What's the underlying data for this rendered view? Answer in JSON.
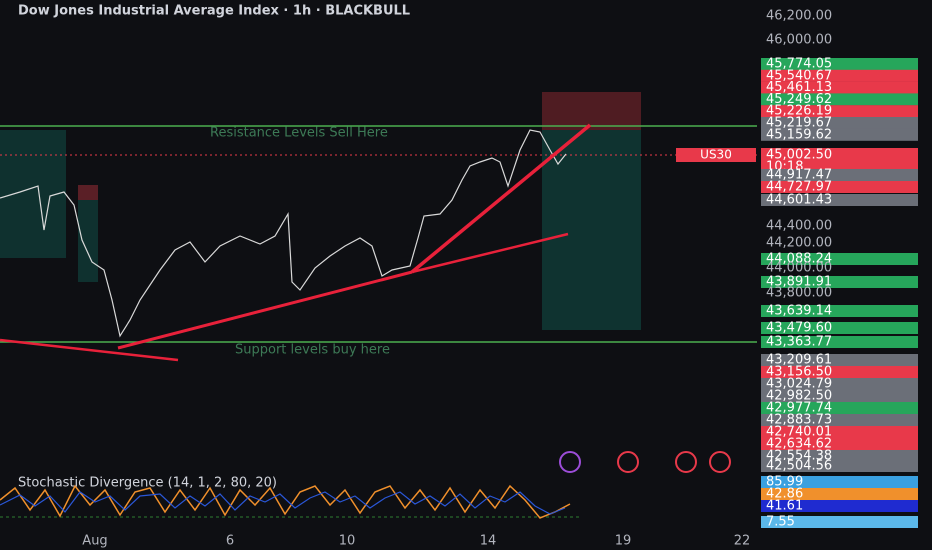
{
  "header": {
    "title": "Dow Jones Industrial Average Index · 1h · BLACKBULL"
  },
  "annotations": {
    "resistance": "Resistance Levels Sell Here",
    "support": "Support levels buy here"
  },
  "indicator": {
    "label": "Stochastic Divergence (14, 1, 2, 80, 20)"
  },
  "symbol_tag": {
    "name": "US30",
    "price": "45,002.50",
    "countdown": "10:18"
  },
  "price_axis": [
    {
      "text": "46,200.00",
      "color": "none",
      "y": 16
    },
    {
      "text": "46,000.00",
      "color": "none",
      "y": 40
    }
  ],
  "price_labels": [
    {
      "text": "45,774.05",
      "color": "#26a65b"
    },
    {
      "text": "45,540.67",
      "color": "#e8394a"
    },
    {
      "text": "45,461.13",
      "color": "#e8394a"
    },
    {
      "text": "45,249.62",
      "color": "#26a65b"
    },
    {
      "text": "45,226.19",
      "color": "#e8394a"
    },
    {
      "text": "45,219.67",
      "color": "#6b6f78"
    },
    {
      "text": "45,159.62",
      "color": "#6b6f78"
    }
  ],
  "price_labels_lower": [
    {
      "text": "44,917.47",
      "color": "#6b6f78"
    },
    {
      "text": "44,727.97",
      "color": "#e8394a"
    },
    {
      "text": "44,601.43",
      "color": "#6b6f78"
    },
    {
      "text": "44,400.00",
      "color": "none"
    },
    {
      "text": "44,200.00",
      "color": "none"
    },
    {
      "text": "44,088.24",
      "color": "#26a65b"
    },
    {
      "text": "44,000.00",
      "color": "none"
    },
    {
      "text": "43,891.91",
      "color": "#26a65b"
    },
    {
      "text": "43,800.00",
      "color": "none"
    },
    {
      "text": "43,639.14",
      "color": "#26a65b"
    },
    {
      "text": "43,479.60",
      "color": "#26a65b"
    },
    {
      "text": "43,363.77",
      "color": "#26a65b"
    },
    {
      "text": "43,209.61",
      "color": "#6b6f78"
    },
    {
      "text": "43,156.50",
      "color": "#e8394a"
    },
    {
      "text": "43,024.79",
      "color": "#6b6f78"
    },
    {
      "text": "42,982.50",
      "color": "#6b6f78"
    },
    {
      "text": "42,977.74",
      "color": "#26a65b"
    },
    {
      "text": "42,883.73",
      "color": "#6b6f78"
    },
    {
      "text": "42,740.01",
      "color": "#e8394a"
    },
    {
      "text": "42,634.62",
      "color": "#e8394a"
    },
    {
      "text": "42,554.38",
      "color": "#6b6f78"
    },
    {
      "text": "42,504.56",
      "color": "#6b6f78"
    }
  ],
  "indicator_labels": [
    {
      "text": "85.99",
      "color": "#3aa0e0"
    },
    {
      "text": "42.86",
      "color": "#f0902c"
    },
    {
      "text": "41.61",
      "color": "#1f2bd0"
    },
    {
      "text": "7.55",
      "color": "#5bb8ea"
    }
  ],
  "time_axis": [
    "Aug",
    "6",
    "10",
    "14",
    "19",
    "22"
  ]
}
